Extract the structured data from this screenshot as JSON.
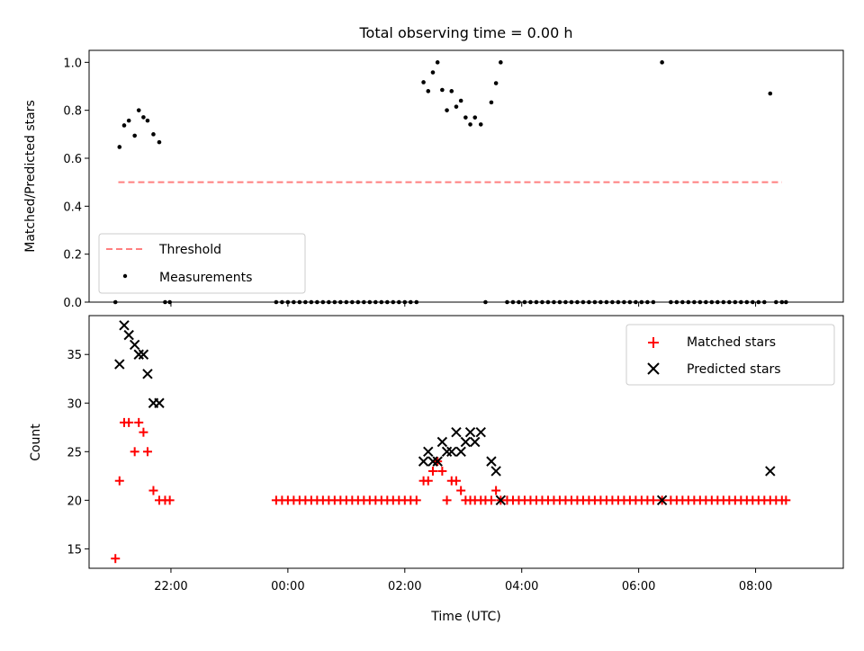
{
  "figure": {
    "title": "Total observing time = 0.00 h",
    "xlabel": "Time (UTC)"
  },
  "chart_data": [
    {
      "type": "scatter",
      "title": "Total observing time = 0.00 h",
      "ylabel": "Matched/Predicted stars",
      "ylim": [
        0,
        1.05
      ],
      "yticks": [
        "0.0",
        "0.2",
        "0.4",
        "0.6",
        "0.8",
        "1.0"
      ],
      "xlim_hours": [
        -3.4,
        9.5
      ],
      "xticks": [
        {
          "h": -2,
          "label": "22:00"
        },
        {
          "h": 0,
          "label": "00:00"
        },
        {
          "h": 2,
          "label": "02:00"
        },
        {
          "h": 4,
          "label": "04:00"
        },
        {
          "h": 6,
          "label": "06:00"
        },
        {
          "h": 8,
          "label": "08:00"
        }
      ],
      "threshold": {
        "name": "Threshold",
        "value": 0.5,
        "x_start": -2.9,
        "x_end": 8.45,
        "color": "#ff7f7f",
        "style": "dashed"
      },
      "measurements": {
        "name": "Measurements",
        "color": "#000000",
        "points": [
          [
            -2.95,
            0.0
          ],
          [
            -2.88,
            0.647
          ],
          [
            -2.8,
            0.737
          ],
          [
            -2.72,
            0.757
          ],
          [
            -2.62,
            0.694
          ],
          [
            -2.55,
            0.8
          ],
          [
            -2.47,
            0.771
          ],
          [
            -2.4,
            0.757
          ],
          [
            -2.3,
            0.7
          ],
          [
            -2.2,
            0.667
          ],
          [
            -2.1,
            0.0
          ],
          [
            -2.02,
            0.0
          ],
          [
            -0.2,
            0.0
          ],
          [
            -0.1,
            0.0
          ],
          [
            0.0,
            0.0
          ],
          [
            0.1,
            0.0
          ],
          [
            0.2,
            0.0
          ],
          [
            0.3,
            0.0
          ],
          [
            0.4,
            0.0
          ],
          [
            0.5,
            0.0
          ],
          [
            0.6,
            0.0
          ],
          [
            0.7,
            0.0
          ],
          [
            0.8,
            0.0
          ],
          [
            0.9,
            0.0
          ],
          [
            1.0,
            0.0
          ],
          [
            1.1,
            0.0
          ],
          [
            1.2,
            0.0
          ],
          [
            1.3,
            0.0
          ],
          [
            1.4,
            0.0
          ],
          [
            1.5,
            0.0
          ],
          [
            1.6,
            0.0
          ],
          [
            1.7,
            0.0
          ],
          [
            1.8,
            0.0
          ],
          [
            1.9,
            0.0
          ],
          [
            2.0,
            0.0
          ],
          [
            2.1,
            0.0
          ],
          [
            2.2,
            0.0
          ],
          [
            2.32,
            0.917
          ],
          [
            2.4,
            0.88
          ],
          [
            2.48,
            0.958
          ],
          [
            2.56,
            1.0
          ],
          [
            2.64,
            0.885
          ],
          [
            2.72,
            0.8
          ],
          [
            2.8,
            0.88
          ],
          [
            2.88,
            0.815
          ],
          [
            2.96,
            0.84
          ],
          [
            3.04,
            0.77
          ],
          [
            3.12,
            0.741
          ],
          [
            3.2,
            0.77
          ],
          [
            3.3,
            0.741
          ],
          [
            3.38,
            0.0
          ],
          [
            3.48,
            0.833
          ],
          [
            3.56,
            0.913
          ],
          [
            3.64,
            1.0
          ],
          [
            3.75,
            0.0
          ],
          [
            3.85,
            0.0
          ],
          [
            3.95,
            0.0
          ],
          [
            4.05,
            0.0
          ],
          [
            4.15,
            0.0
          ],
          [
            4.25,
            0.0
          ],
          [
            4.35,
            0.0
          ],
          [
            4.45,
            0.0
          ],
          [
            4.55,
            0.0
          ],
          [
            4.65,
            0.0
          ],
          [
            4.75,
            0.0
          ],
          [
            4.85,
            0.0
          ],
          [
            4.95,
            0.0
          ],
          [
            5.05,
            0.0
          ],
          [
            5.15,
            0.0
          ],
          [
            5.25,
            0.0
          ],
          [
            5.35,
            0.0
          ],
          [
            5.45,
            0.0
          ],
          [
            5.55,
            0.0
          ],
          [
            5.65,
            0.0
          ],
          [
            5.75,
            0.0
          ],
          [
            5.85,
            0.0
          ],
          [
            5.95,
            0.0
          ],
          [
            6.05,
            0.0
          ],
          [
            6.15,
            0.0
          ],
          [
            6.25,
            0.0
          ],
          [
            6.4,
            1.0
          ],
          [
            6.55,
            0.0
          ],
          [
            6.65,
            0.0
          ],
          [
            6.75,
            0.0
          ],
          [
            6.85,
            0.0
          ],
          [
            6.95,
            0.0
          ],
          [
            7.05,
            0.0
          ],
          [
            7.15,
            0.0
          ],
          [
            7.25,
            0.0
          ],
          [
            7.35,
            0.0
          ],
          [
            7.45,
            0.0
          ],
          [
            7.55,
            0.0
          ],
          [
            7.65,
            0.0
          ],
          [
            7.75,
            0.0
          ],
          [
            7.85,
            0.0
          ],
          [
            7.95,
            0.0
          ],
          [
            8.05,
            0.0
          ],
          [
            8.15,
            0.0
          ],
          [
            8.25,
            0.87
          ],
          [
            8.35,
            0.0
          ],
          [
            8.45,
            0.0
          ],
          [
            8.52,
            0.0
          ]
        ]
      },
      "legend": {
        "placement": "lower-left",
        "entries": [
          "Threshold",
          "Measurements"
        ]
      }
    },
    {
      "type": "scatter",
      "ylabel": "Count",
      "ylim": [
        13,
        39
      ],
      "yticks": [
        "15",
        "20",
        "25",
        "30",
        "35"
      ],
      "ytick_values": [
        15,
        20,
        25,
        30,
        35
      ],
      "xlim_hours": [
        -3.4,
        9.5
      ],
      "xticks": [
        {
          "h": -2,
          "label": "22:00"
        },
        {
          "h": 0,
          "label": "00:00"
        },
        {
          "h": 2,
          "label": "02:00"
        },
        {
          "h": 4,
          "label": "04:00"
        },
        {
          "h": 6,
          "label": "06:00"
        },
        {
          "h": 8,
          "label": "08:00"
        }
      ],
      "series": [
        {
          "name": "Matched stars",
          "marker": "plus",
          "color": "#ff0000",
          "points": [
            [
              -2.95,
              14
            ],
            [
              -2.88,
              22
            ],
            [
              -2.8,
              28
            ],
            [
              -2.72,
              28
            ],
            [
              -2.62,
              25
            ],
            [
              -2.55,
              28
            ],
            [
              -2.47,
              27
            ],
            [
              -2.4,
              25
            ],
            [
              -2.3,
              21
            ],
            [
              -2.2,
              20
            ],
            [
              -2.1,
              20
            ],
            [
              -2.02,
              20
            ],
            [
              -0.2,
              20
            ],
            [
              -0.1,
              20
            ],
            [
              0.0,
              20
            ],
            [
              0.1,
              20
            ],
            [
              0.2,
              20
            ],
            [
              0.3,
              20
            ],
            [
              0.4,
              20
            ],
            [
              0.5,
              20
            ],
            [
              0.6,
              20
            ],
            [
              0.7,
              20
            ],
            [
              0.8,
              20
            ],
            [
              0.9,
              20
            ],
            [
              1.0,
              20
            ],
            [
              1.1,
              20
            ],
            [
              1.2,
              20
            ],
            [
              1.3,
              20
            ],
            [
              1.4,
              20
            ],
            [
              1.5,
              20
            ],
            [
              1.6,
              20
            ],
            [
              1.7,
              20
            ],
            [
              1.8,
              20
            ],
            [
              1.9,
              20
            ],
            [
              2.0,
              20
            ],
            [
              2.1,
              20
            ],
            [
              2.2,
              20
            ],
            [
              2.32,
              22
            ],
            [
              2.4,
              22
            ],
            [
              2.48,
              23
            ],
            [
              2.56,
              24
            ],
            [
              2.64,
              23
            ],
            [
              2.72,
              20
            ],
            [
              2.8,
              22
            ],
            [
              2.88,
              22
            ],
            [
              2.96,
              21
            ],
            [
              3.04,
              20
            ],
            [
              3.12,
              20
            ],
            [
              3.2,
              20
            ],
            [
              3.3,
              20
            ],
            [
              3.38,
              20
            ],
            [
              3.48,
              20
            ],
            [
              3.56,
              21
            ],
            [
              3.64,
              20
            ],
            [
              3.75,
              20
            ],
            [
              3.85,
              20
            ],
            [
              3.95,
              20
            ],
            [
              4.05,
              20
            ],
            [
              4.15,
              20
            ],
            [
              4.25,
              20
            ],
            [
              4.35,
              20
            ],
            [
              4.45,
              20
            ],
            [
              4.55,
              20
            ],
            [
              4.65,
              20
            ],
            [
              4.75,
              20
            ],
            [
              4.85,
              20
            ],
            [
              4.95,
              20
            ],
            [
              5.05,
              20
            ],
            [
              5.15,
              20
            ],
            [
              5.25,
              20
            ],
            [
              5.35,
              20
            ],
            [
              5.45,
              20
            ],
            [
              5.55,
              20
            ],
            [
              5.65,
              20
            ],
            [
              5.75,
              20
            ],
            [
              5.85,
              20
            ],
            [
              5.95,
              20
            ],
            [
              6.05,
              20
            ],
            [
              6.15,
              20
            ],
            [
              6.25,
              20
            ],
            [
              6.4,
              20
            ],
            [
              6.55,
              20
            ],
            [
              6.65,
              20
            ],
            [
              6.75,
              20
            ],
            [
              6.85,
              20
            ],
            [
              6.95,
              20
            ],
            [
              7.05,
              20
            ],
            [
              7.15,
              20
            ],
            [
              7.25,
              20
            ],
            [
              7.35,
              20
            ],
            [
              7.45,
              20
            ],
            [
              7.55,
              20
            ],
            [
              7.65,
              20
            ],
            [
              7.75,
              20
            ],
            [
              7.85,
              20
            ],
            [
              7.95,
              20
            ],
            [
              8.05,
              20
            ],
            [
              8.15,
              20
            ],
            [
              8.25,
              20
            ],
            [
              8.35,
              20
            ],
            [
              8.45,
              20
            ],
            [
              8.52,
              20
            ]
          ]
        },
        {
          "name": "Predicted stars",
          "marker": "x",
          "color": "#000000",
          "points": [
            [
              -2.88,
              34
            ],
            [
              -2.8,
              38
            ],
            [
              -2.72,
              37
            ],
            [
              -2.62,
              36
            ],
            [
              -2.55,
              35
            ],
            [
              -2.47,
              35
            ],
            [
              -2.4,
              33
            ],
            [
              -2.3,
              30
            ],
            [
              -2.2,
              30
            ],
            [
              2.32,
              24
            ],
            [
              2.4,
              25
            ],
            [
              2.48,
              24
            ],
            [
              2.56,
              24
            ],
            [
              2.64,
              26
            ],
            [
              2.72,
              25
            ],
            [
              2.8,
              25
            ],
            [
              2.88,
              27
            ],
            [
              2.96,
              25
            ],
            [
              3.04,
              26
            ],
            [
              3.12,
              27
            ],
            [
              3.2,
              26
            ],
            [
              3.3,
              27
            ],
            [
              3.48,
              24
            ],
            [
              3.56,
              23
            ],
            [
              3.64,
              20
            ],
            [
              6.4,
              20
            ],
            [
              8.25,
              23
            ]
          ]
        }
      ],
      "legend": {
        "placement": "upper-right",
        "entries": [
          "Matched stars",
          "Predicted stars"
        ]
      }
    }
  ]
}
